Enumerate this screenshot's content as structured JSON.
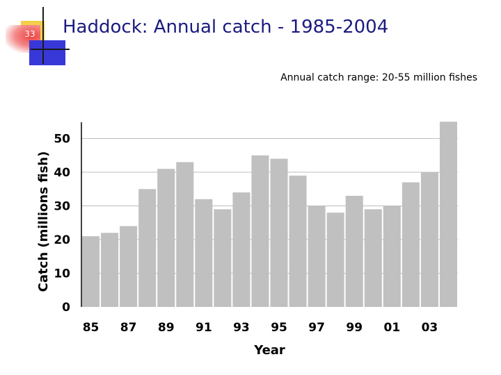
{
  "slide": {
    "number": "33",
    "title": "Haddock: Annual catch - 1985-2004",
    "subtitle": "Annual catch range: 20-55 million fishes"
  },
  "colors": {
    "bar": "#c0c0c0",
    "title": "#1a1a80",
    "accent_yellow": "#f4cf4a",
    "accent_red": "#ef3f3f",
    "accent_blue": "#3838d8"
  },
  "chart_data": {
    "type": "bar",
    "title": "",
    "xlabel": "Year",
    "ylabel": "Catch (millions fish)",
    "ylim": [
      0,
      55
    ],
    "yticks": [
      0,
      10,
      20,
      30,
      40,
      50
    ],
    "grid": true,
    "categories": [
      "85",
      "86",
      "87",
      "88",
      "89",
      "90",
      "91",
      "92",
      "93",
      "94",
      "95",
      "96",
      "97",
      "98",
      "99",
      "00",
      "01",
      "02",
      "03",
      "04"
    ],
    "values": [
      21,
      22,
      24,
      35,
      41,
      43,
      32,
      29,
      34,
      45,
      44,
      39,
      30,
      28,
      33,
      29,
      30,
      37,
      40,
      55
    ],
    "xtick_labels": [
      "85",
      "87",
      "89",
      "91",
      "93",
      "95",
      "97",
      "99",
      "01",
      "03"
    ]
  }
}
